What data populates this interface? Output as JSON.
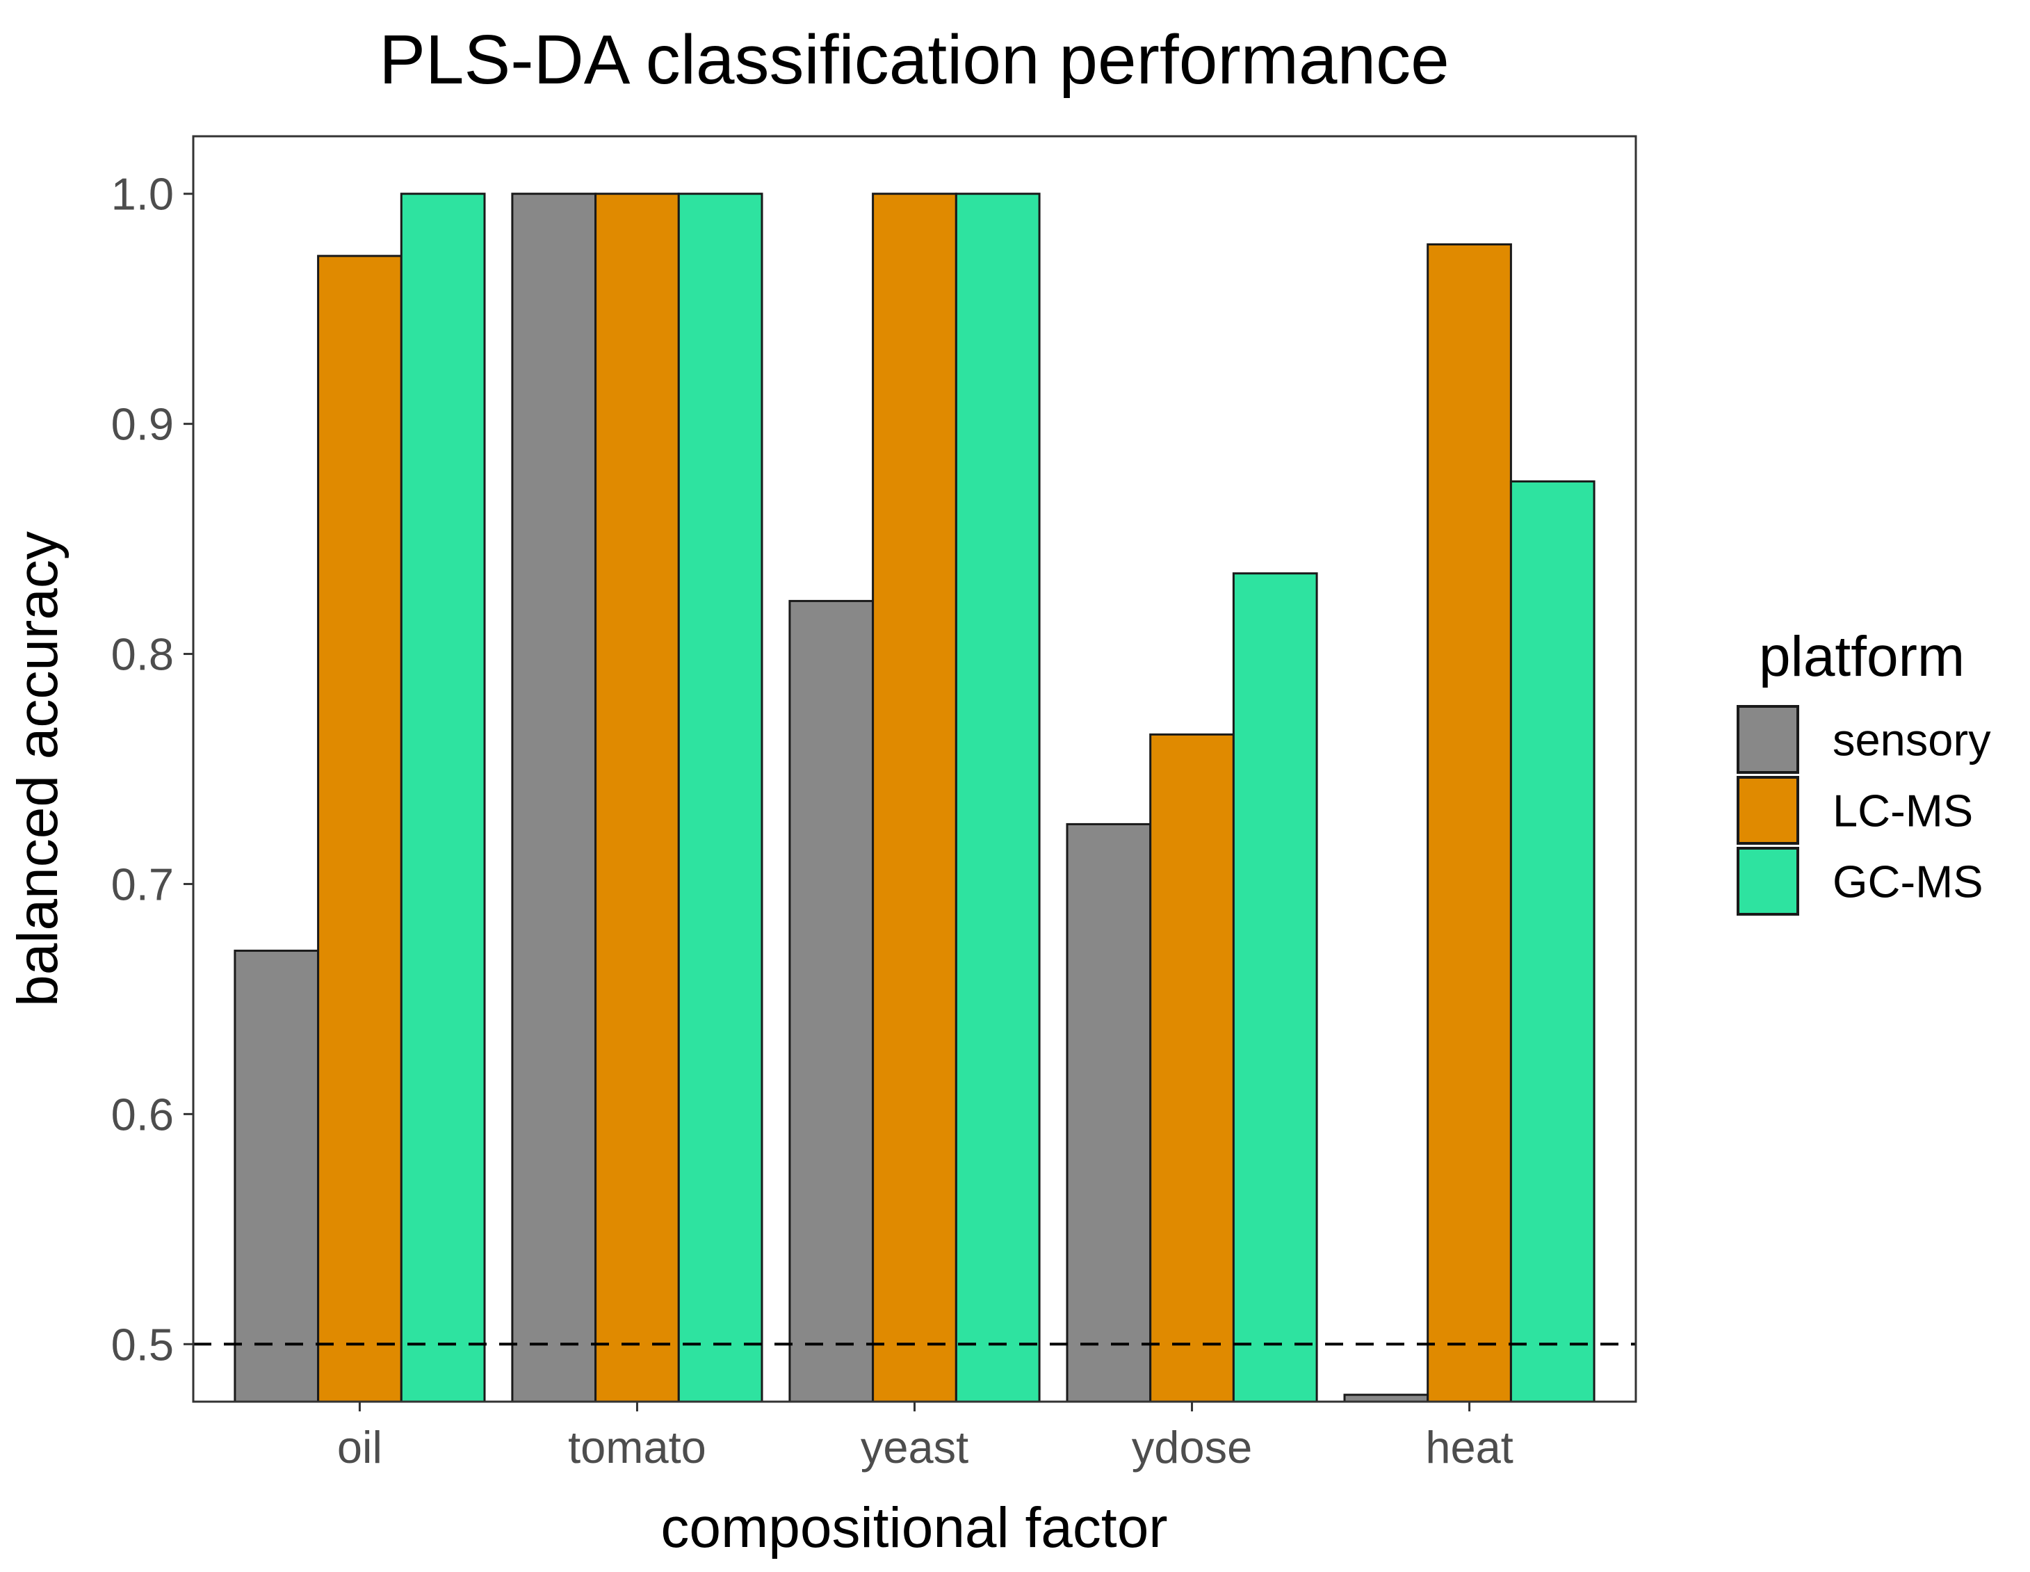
{
  "chart_data": {
    "type": "bar",
    "title": "PLS-DA classification performance",
    "xlabel": "compositional factor",
    "ylabel": "balanced accuracy",
    "categories": [
      "oil",
      "tomato",
      "yeast",
      "ydose",
      "heat"
    ],
    "series": [
      {
        "name": "sensory",
        "color": "#888888",
        "values": [
          0.671,
          1.0,
          0.823,
          0.726,
          0.478
        ]
      },
      {
        "name": "LC-MS",
        "color": "#e08a00",
        "values": [
          0.973,
          1.0,
          1.0,
          0.765,
          0.978
        ]
      },
      {
        "name": "GC-MS",
        "color": "#2ee3a0",
        "values": [
          1.0,
          1.0,
          1.0,
          0.835,
          0.875
        ]
      }
    ],
    "ylim": [
      0.475,
      1.025
    ],
    "yticks": [
      0.5,
      0.6,
      0.7,
      0.8,
      0.9,
      1.0
    ],
    "ytick_labels": [
      "0.5",
      "0.6",
      "0.7",
      "0.8",
      "0.9",
      "1.0"
    ],
    "reference_line": {
      "y": 0.5,
      "style": "dashed"
    },
    "grid": false,
    "legend": {
      "title": "platform",
      "position": "right"
    }
  }
}
